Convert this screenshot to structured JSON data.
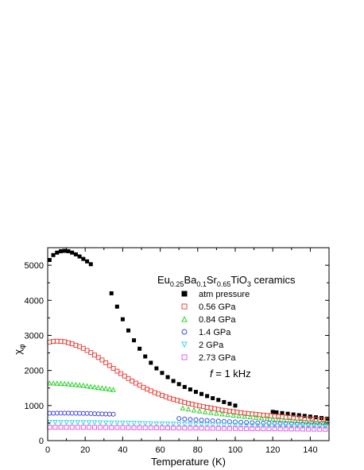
{
  "chart_data": {
    "type": "scatter",
    "title": "",
    "xlabel": "Temperature (K)",
    "ylabel_main": "χ",
    "ylabel_sub": "φ",
    "xlim": [
      0,
      150
    ],
    "ylim": [
      0,
      5500
    ],
    "x_ticks": [
      0,
      20,
      40,
      60,
      80,
      100,
      120,
      140
    ],
    "y_ticks": [
      0,
      1000,
      2000,
      3000,
      4000,
      5000
    ],
    "grid": false,
    "legend_position": "right",
    "annotation_composition": {
      "parts": [
        {
          "t": "Eu",
          "sub": false
        },
        {
          "t": "0.25",
          "sub": true
        },
        {
          "t": "Ba",
          "sub": false
        },
        {
          "t": "0.1",
          "sub": true
        },
        {
          "t": "Sr",
          "sub": false
        },
        {
          "t": "0.65",
          "sub": true
        },
        {
          "t": "TiO",
          "sub": false
        },
        {
          "t": "3",
          "sub": true
        },
        {
          "t": " ceramics",
          "sub": false
        }
      ]
    },
    "annotation_frequency": {
      "italic": "f",
      "rest": " = 1 kHz"
    },
    "series": [
      {
        "name": "atm pressure",
        "marker": "filled-square",
        "color": "#000000",
        "x": [
          1,
          3,
          5,
          7,
          9,
          11,
          13,
          15,
          17,
          19,
          21,
          23,
          34,
          37,
          40,
          43,
          46,
          49,
          52,
          55,
          58,
          61,
          64,
          67,
          70,
          73,
          76,
          79,
          82,
          85,
          88,
          91,
          94,
          97,
          100,
          120,
          122,
          125,
          128,
          131,
          134,
          137,
          140,
          143,
          146,
          149
        ],
        "y": [
          5150,
          5290,
          5360,
          5400,
          5410,
          5400,
          5360,
          5310,
          5250,
          5180,
          5110,
          5030,
          4200,
          3820,
          3460,
          3140,
          2860,
          2620,
          2400,
          2220,
          2060,
          1930,
          1810,
          1700,
          1610,
          1530,
          1460,
          1390,
          1330,
          1270,
          1210,
          1160,
          1100,
          1050,
          1000,
          820,
          805,
          785,
          765,
          745,
          725,
          705,
          685,
          665,
          645,
          625
        ]
      },
      {
        "name": "0.56 GPa",
        "marker": "open-square",
        "color": "#e8483f",
        "x": [
          1,
          3,
          5,
          7,
          9,
          11,
          13,
          15,
          17,
          19,
          21,
          23,
          25,
          27,
          29,
          31,
          33,
          35,
          37,
          39,
          41,
          43,
          45,
          47,
          49,
          51,
          53,
          55,
          57,
          59,
          61,
          63,
          65,
          67,
          69,
          71,
          73,
          75,
          77,
          79,
          81,
          83,
          85,
          87,
          89,
          91,
          93,
          95,
          97,
          99,
          101,
          103,
          105,
          107,
          109,
          111,
          113,
          115,
          117,
          119,
          121,
          123,
          125,
          127,
          129,
          131,
          133,
          135,
          137,
          139,
          141,
          143,
          145,
          147,
          149
        ],
        "y": [
          2810,
          2830,
          2835,
          2830,
          2820,
          2790,
          2760,
          2720,
          2680,
          2630,
          2570,
          2510,
          2440,
          2370,
          2300,
          2220,
          2140,
          2060,
          1980,
          1910,
          1840,
          1770,
          1700,
          1640,
          1580,
          1520,
          1470,
          1420,
          1370,
          1330,
          1290,
          1250,
          1210,
          1180,
          1150,
          1120,
          1090,
          1060,
          1040,
          1010,
          990,
          970,
          950,
          930,
          910,
          890,
          870,
          855,
          840,
          825,
          810,
          795,
          780,
          770,
          760,
          748,
          737,
          726,
          716,
          706,
          696,
          686,
          677,
          668,
          659,
          651,
          643,
          635,
          628,
          621,
          614,
          607,
          600,
          594,
          588
        ]
      },
      {
        "name": "0.84 GPa",
        "marker": "open-triangle-up",
        "color": "#2fd22f",
        "x": [
          1,
          3,
          5,
          7,
          9,
          11,
          13,
          15,
          17,
          19,
          21,
          23,
          25,
          27,
          29,
          31,
          33,
          35,
          72,
          75,
          78,
          81,
          84,
          87,
          90,
          93,
          96,
          99,
          102,
          105,
          108,
          111,
          114,
          117,
          120,
          123,
          126,
          129,
          132,
          135,
          138,
          141,
          144,
          147,
          149
        ],
        "y": [
          1640,
          1640,
          1635,
          1630,
          1625,
          1615,
          1605,
          1595,
          1585,
          1575,
          1560,
          1545,
          1530,
          1515,
          1500,
          1485,
          1470,
          1455,
          930,
          900,
          870,
          845,
          820,
          800,
          780,
          760,
          742,
          725,
          708,
          692,
          677,
          662,
          648,
          634,
          620,
          607,
          595,
          583,
          571,
          560,
          549,
          538,
          528,
          518,
          512
        ]
      },
      {
        "name": "1.4 GPa",
        "marker": "open-circle",
        "color": "#3846e0",
        "x": [
          1,
          3,
          5,
          7,
          9,
          11,
          13,
          15,
          17,
          19,
          21,
          23,
          25,
          27,
          29,
          31,
          33,
          35,
          70,
          73,
          76,
          79,
          82,
          85,
          88,
          91,
          94,
          97,
          100,
          103,
          106,
          109,
          112,
          115,
          118,
          121,
          124,
          127,
          130,
          133,
          136,
          139,
          142,
          145,
          148
        ],
        "y": [
          780,
          782,
          783,
          784,
          784,
          783,
          782,
          780,
          778,
          776,
          774,
          771,
          768,
          765,
          762,
          759,
          756,
          752,
          630,
          618,
          606,
          595,
          585,
          575,
          566,
          557,
          549,
          541,
          533,
          526,
          519,
          512,
          506,
          500,
          494,
          489,
          484,
          479,
          474,
          470,
          466,
          462,
          458,
          454,
          451
        ]
      },
      {
        "name": "2 GPa",
        "marker": "open-triangle-down",
        "color": "#3ad6e0",
        "x": [
          1,
          4,
          7,
          10,
          13,
          16,
          19,
          22,
          25,
          28,
          31,
          34,
          37,
          40,
          43,
          46,
          49,
          52,
          55,
          58,
          61,
          64,
          67,
          70,
          73,
          76,
          79,
          82,
          85,
          88,
          91,
          94,
          97,
          100,
          103,
          106,
          109,
          112,
          115,
          118,
          121,
          124,
          127,
          130,
          133,
          136,
          139,
          142,
          145,
          148
        ],
        "y": [
          520,
          520,
          519,
          518,
          517,
          516,
          515,
          513,
          511,
          509,
          507,
          505,
          503,
          500,
          497,
          494,
          491,
          488,
          485,
          482,
          479,
          476,
          472,
          469,
          466,
          462,
          459,
          456,
          452,
          449,
          446,
          443,
          440,
          437,
          434,
          431,
          428,
          425,
          422,
          419,
          416,
          413,
          410,
          407,
          404,
          401,
          398,
          395,
          392,
          389
        ]
      },
      {
        "name": "2.73 GPa",
        "marker": "open-square",
        "color": "#e65be6",
        "x": [
          1,
          4,
          7,
          10,
          13,
          16,
          19,
          22,
          25,
          28,
          31,
          34,
          37,
          40,
          43,
          46,
          49,
          52,
          55,
          58,
          61,
          64,
          67,
          70,
          73,
          76,
          79,
          82,
          85,
          88,
          91,
          94,
          97,
          100,
          103,
          106,
          109,
          112,
          115,
          118,
          121,
          124,
          127,
          130,
          133,
          136,
          139,
          142,
          145,
          148
        ],
        "y": [
          380,
          380,
          380,
          379,
          379,
          378,
          378,
          377,
          376,
          375,
          374,
          373,
          372,
          371,
          370,
          369,
          368,
          367,
          366,
          365,
          364,
          362,
          361,
          360,
          359,
          357,
          356,
          355,
          353,
          352,
          351,
          349,
          348,
          347,
          345,
          344,
          342,
          341,
          340,
          338,
          337,
          335,
          334,
          332,
          331,
          329,
          328,
          326,
          325,
          323
        ]
      }
    ]
  }
}
